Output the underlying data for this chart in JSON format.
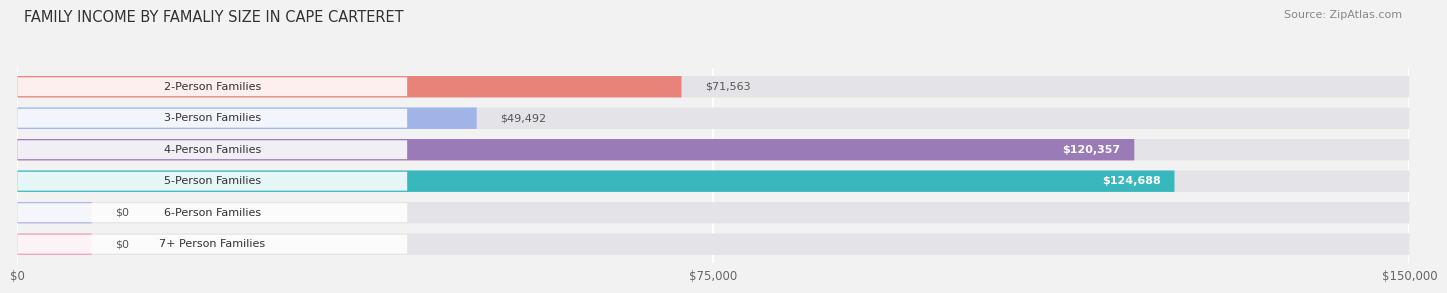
{
  "title": "FAMILY INCOME BY FAMALIY SIZE IN CAPE CARTERET",
  "source": "Source: ZipAtlas.com",
  "categories": [
    "2-Person Families",
    "3-Person Families",
    "4-Person Families",
    "5-Person Families",
    "6-Person Families",
    "7+ Person Families"
  ],
  "values": [
    71563,
    49492,
    120357,
    124688,
    0,
    0
  ],
  "bar_colors": [
    "#e8837a",
    "#a0b4e8",
    "#9b7ab8",
    "#38b8bc",
    "#b0b8e8",
    "#f0a0b8"
  ],
  "label_colors": [
    "#555555",
    "#555555",
    "#ffffff",
    "#ffffff",
    "#555555",
    "#555555"
  ],
  "max_value": 150000,
  "xticks": [
    0,
    75000,
    150000
  ],
  "xtick_labels": [
    "$0",
    "$75,000",
    "$150,000"
  ],
  "background_color": "#f2f2f2",
  "bar_bg_color": "#e4e4e8",
  "value_labels": [
    "$71,563",
    "$49,492",
    "$120,357",
    "$124,688",
    "$0",
    "$0"
  ],
  "zero_bar_width": 8000
}
